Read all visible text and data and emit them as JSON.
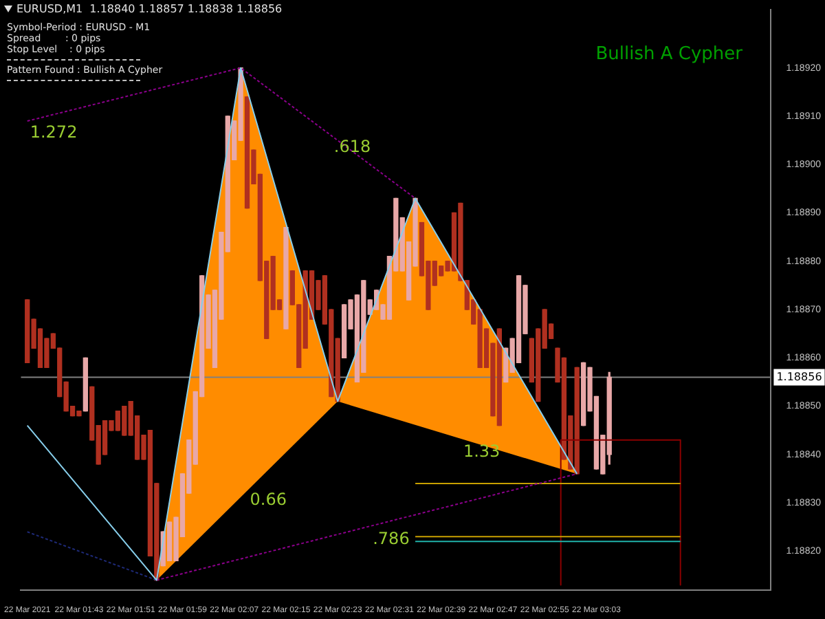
{
  "chart_data": {
    "type": "candlestick",
    "title": "EURUSD,M1  1.18840 1.18857 1.18838 1.18856",
    "subtitle": "Bullish A Cypher",
    "annotations": [
      "Symbol-Period : EURUSD - M1",
      "Spread        : 0 pips",
      "Stop Level    : 0 pips",
      "Pattern Found : Bullish A Cypher",
      {
        "text": "1.272",
        "x": "2021-03-22T01:35",
        "y": 1.18909
      },
      {
        "text": ".618",
        "x": "2021-03-22T02:22",
        "y": 1.18906
      },
      {
        "text": "0.66",
        "x": "2021-03-22T02:09",
        "y": 1.18833
      },
      {
        "text": "1.33",
        "x": "2021-03-22T02:42",
        "y": 1.18843
      },
      {
        "text": ".786",
        "x": "2021-03-22T02:28",
        "y": 1.18825
      }
    ],
    "xlim": [
      "2021-03-22T01:34",
      "2021-03-22T03:30"
    ],
    "xticks": [
      {
        "value": "2021-03-22T01:35",
        "label": "22 Mar 2021"
      },
      {
        "value": "2021-03-22T01:43",
        "label": "22 Mar 01:43"
      },
      {
        "value": "2021-03-22T01:51",
        "label": "22 Mar 01:51"
      },
      {
        "value": "2021-03-22T01:59",
        "label": "22 Mar 01:59"
      },
      {
        "value": "2021-03-22T02:07",
        "label": "22 Mar 02:07"
      },
      {
        "value": "2021-03-22T02:15",
        "label": "22 Mar 02:15"
      },
      {
        "value": "2021-03-22T02:23",
        "label": "22 Mar 02:23"
      },
      {
        "value": "2021-03-22T02:31",
        "label": "22 Mar 02:31"
      },
      {
        "value": "2021-03-22T02:39",
        "label": "22 Mar 02:39"
      },
      {
        "value": "2021-03-22T02:47",
        "label": "22 Mar 02:47"
      },
      {
        "value": "2021-03-22T02:55",
        "label": "22 Mar 02:55"
      },
      {
        "value": "2021-03-22T03:03",
        "label": "22 Mar 03:03"
      }
    ],
    "ylim": [
      1.18812,
      1.18932
    ],
    "yticks": [
      {
        "value": 1.1882,
        "label": "1.18820"
      },
      {
        "value": 1.1883,
        "label": "1.18830"
      },
      {
        "value": 1.1884,
        "label": "1.18840"
      },
      {
        "value": 1.1885,
        "label": "1.18850"
      },
      {
        "value": 1.1886,
        "label": "1.18860"
      },
      {
        "value": 1.1887,
        "label": "1.18870"
      },
      {
        "value": 1.1888,
        "label": "1.18880"
      },
      {
        "value": 1.1889,
        "label": "1.18890"
      },
      {
        "value": 1.189,
        "label": "1.18900"
      },
      {
        "value": 1.1891,
        "label": "1.18910"
      },
      {
        "value": 1.1892,
        "label": "1.18920"
      }
    ],
    "ref_lines": [
      {
        "axis": "y",
        "value": 1.18856,
        "label": "1.18856",
        "color": "#808080"
      }
    ],
    "series": [
      {
        "color": "#b03020",
        "x": [
          "2021-03-22T01:35",
          "2021-03-22T01:36",
          "2021-03-22T01:37",
          "2021-03-22T01:38",
          "2021-03-22T01:39",
          "2021-03-22T01:40",
          "2021-03-22T01:41",
          "2021-03-22T01:42",
          "2021-03-22T01:43",
          "2021-03-22T01:45",
          "2021-03-22T01:46",
          "2021-03-22T01:47",
          "2021-03-22T01:48",
          "2021-03-22T01:49",
          "2021-03-22T01:50",
          "2021-03-22T01:51",
          "2021-03-22T01:52",
          "2021-03-22T01:53",
          "2021-03-22T01:54",
          "2021-03-22T01:55",
          "2021-03-22T02:09",
          "2021-03-22T02:10",
          "2021-03-22T02:11",
          "2021-03-22T02:12",
          "2021-03-22T02:13",
          "2021-03-22T02:14",
          "2021-03-22T02:16",
          "2021-03-22T02:17",
          "2021-03-22T02:18",
          "2021-03-22T02:19",
          "2021-03-22T02:20",
          "2021-03-22T02:21",
          "2021-03-22T02:22",
          "2021-03-22T02:23",
          "2021-03-22T02:36",
          "2021-03-22T02:37",
          "2021-03-22T02:38",
          "2021-03-22T02:39",
          "2021-03-22T02:40",
          "2021-03-22T02:41",
          "2021-03-22T02:42",
          "2021-03-22T02:43",
          "2021-03-22T02:44",
          "2021-03-22T02:45",
          "2021-03-22T02:46",
          "2021-03-22T02:47",
          "2021-03-22T02:48",
          "2021-03-22T02:53",
          "2021-03-22T02:54",
          "2021-03-22T02:55",
          "2021-03-22T02:56",
          "2021-03-22T02:57",
          "2021-03-22T02:58",
          "2021-03-22T02:59",
          "2021-03-22T03:00"
        ],
        "ohlc": [
          [
            1.18872,
            1.18872,
            1.18859,
            1.18859
          ],
          [
            1.18868,
            1.18868,
            1.18862,
            1.18862
          ],
          [
            1.18866,
            1.18866,
            1.18858,
            1.18858
          ],
          [
            1.18864,
            1.18864,
            1.18858,
            1.18858
          ],
          [
            1.18865,
            1.18865,
            1.18862,
            1.18862
          ],
          [
            1.18862,
            1.18862,
            1.18852,
            1.18852
          ],
          [
            1.18855,
            1.18855,
            1.18849,
            1.18849
          ],
          [
            1.1885,
            1.1885,
            1.18848,
            1.18848
          ],
          [
            1.18849,
            1.18849,
            1.18848,
            1.18848
          ],
          [
            1.18854,
            1.18854,
            1.18843,
            1.18843
          ],
          [
            1.18846,
            1.18846,
            1.18838,
            1.18838
          ],
          [
            1.18847,
            1.18847,
            1.1884,
            1.1884
          ],
          [
            1.18847,
            1.18847,
            1.18845,
            1.18845
          ],
          [
            1.18849,
            1.18849,
            1.18845,
            1.18845
          ],
          [
            1.1885,
            1.1885,
            1.18844,
            1.18844
          ],
          [
            1.18851,
            1.18851,
            1.18844,
            1.18844
          ],
          [
            1.18848,
            1.18848,
            1.18839,
            1.18839
          ],
          [
            1.18844,
            1.18844,
            1.18839,
            1.18839
          ],
          [
            1.18845,
            1.18845,
            1.18819,
            1.18819
          ],
          [
            1.18834,
            1.18834,
            1.18814,
            1.18814
          ],
          [
            1.18914,
            1.18914,
            1.18891,
            1.18891
          ],
          [
            1.18903,
            1.18903,
            1.18896,
            1.18896
          ],
          [
            1.18898,
            1.18898,
            1.18876,
            1.18876
          ],
          [
            1.1888,
            1.1888,
            1.18864,
            1.18864
          ],
          [
            1.18881,
            1.18881,
            1.1887,
            1.1887
          ],
          [
            1.18872,
            1.18872,
            1.1887,
            1.1887
          ],
          [
            1.18878,
            1.18878,
            1.18871,
            1.18871
          ],
          [
            1.18871,
            1.18871,
            1.18858,
            1.18858
          ],
          [
            1.18878,
            1.18878,
            1.18862,
            1.18862
          ],
          [
            1.18878,
            1.18878,
            1.18868,
            1.18868
          ],
          [
            1.18876,
            1.18876,
            1.1887,
            1.1887
          ],
          [
            1.18877,
            1.18877,
            1.18867,
            1.18867
          ],
          [
            1.1887,
            1.1887,
            1.18852,
            1.18852
          ],
          [
            1.18864,
            1.18864,
            1.18851,
            1.18851
          ],
          [
            1.18888,
            1.18888,
            1.18877,
            1.18877
          ],
          [
            1.1888,
            1.1888,
            1.1887,
            1.1887
          ],
          [
            1.1888,
            1.1888,
            1.18875,
            1.18875
          ],
          [
            1.18879,
            1.18879,
            1.18877,
            1.18877
          ],
          [
            1.1888,
            1.1888,
            1.18878,
            1.18878
          ],
          [
            1.1889,
            1.1889,
            1.18878,
            1.18878
          ],
          [
            1.18892,
            1.18892,
            1.18876,
            1.18876
          ],
          [
            1.18876,
            1.18876,
            1.1887,
            1.1887
          ],
          [
            1.18872,
            1.18872,
            1.18867,
            1.18867
          ],
          [
            1.1887,
            1.1887,
            1.18858,
            1.18858
          ],
          [
            1.18866,
            1.18866,
            1.18858,
            1.18858
          ],
          [
            1.18863,
            1.18863,
            1.18848,
            1.18848
          ],
          [
            1.18866,
            1.18866,
            1.18846,
            1.18846
          ],
          [
            1.18864,
            1.18864,
            1.18855,
            1.18855
          ],
          [
            1.18866,
            1.18866,
            1.18851,
            1.18851
          ],
          [
            1.1887,
            1.1887,
            1.18862,
            1.18862
          ],
          [
            1.18867,
            1.18867,
            1.18864,
            1.18864
          ],
          [
            1.18862,
            1.18862,
            1.18855,
            1.18855
          ],
          [
            1.1886,
            1.1886,
            1.18839,
            1.18839
          ],
          [
            1.18848,
            1.18848,
            1.18837,
            1.18837
          ],
          [
            1.18858,
            1.18858,
            1.18836,
            1.18836
          ]
        ]
      },
      {
        "color": "#e8a8a8",
        "x": [
          "2021-03-22T01:44",
          "2021-03-22T01:56",
          "2021-03-22T01:57",
          "2021-03-22T01:58",
          "2021-03-22T01:59",
          "2021-03-22T02:00",
          "2021-03-22T02:01",
          "2021-03-22T02:02",
          "2021-03-22T02:03",
          "2021-03-22T02:04",
          "2021-03-22T02:05",
          "2021-03-22T02:06",
          "2021-03-22T02:07",
          "2021-03-22T02:08",
          "2021-03-22T02:15",
          "2021-03-22T02:24",
          "2021-03-22T02:25",
          "2021-03-22T02:26",
          "2021-03-22T02:27",
          "2021-03-22T02:28",
          "2021-03-22T02:29",
          "2021-03-22T02:30",
          "2021-03-22T02:31",
          "2021-03-22T02:32",
          "2021-03-22T02:33",
          "2021-03-22T02:34",
          "2021-03-22T02:35",
          "2021-03-22T02:49",
          "2021-03-22T02:50",
          "2021-03-22T02:51",
          "2021-03-22T02:52",
          "2021-03-22T03:01",
          "2021-03-22T03:02",
          "2021-03-22T03:03",
          "2021-03-22T03:04",
          "2021-03-22T03:05"
        ],
        "ohlc": [
          [
            1.18849,
            1.1886,
            1.18849,
            1.1886
          ],
          [
            1.18817,
            1.18824,
            1.18817,
            1.18824
          ],
          [
            1.18818,
            1.18826,
            1.18818,
            1.18826
          ],
          [
            1.18818,
            1.18827,
            1.18818,
            1.18827
          ],
          [
            1.18823,
            1.18836,
            1.18823,
            1.18836
          ],
          [
            1.18832,
            1.18843,
            1.18832,
            1.18843
          ],
          [
            1.18838,
            1.18853,
            1.18838,
            1.18853
          ],
          [
            1.18852,
            1.18877,
            1.18852,
            1.18877
          ],
          [
            1.18862,
            1.18873,
            1.18862,
            1.18873
          ],
          [
            1.18858,
            1.18874,
            1.18858,
            1.18874
          ],
          [
            1.18868,
            1.18886,
            1.18868,
            1.18886
          ],
          [
            1.18882,
            1.1891,
            1.18882,
            1.1891
          ],
          [
            1.18901,
            1.18909,
            1.18901,
            1.18909
          ],
          [
            1.18905,
            1.1892,
            1.18905,
            1.1892
          ],
          [
            1.18866,
            1.18887,
            1.18866,
            1.18887
          ],
          [
            1.1886,
            1.18871,
            1.1886,
            1.18871
          ],
          [
            1.18866,
            1.18872,
            1.18866,
            1.18872
          ],
          [
            1.18855,
            1.18873,
            1.18855,
            1.18873
          ],
          [
            1.18857,
            1.18876,
            1.18857,
            1.18876
          ],
          [
            1.18869,
            1.18872,
            1.18869,
            1.18872
          ],
          [
            1.1887,
            1.18874,
            1.1887,
            1.18874
          ],
          [
            1.18868,
            1.18871,
            1.18868,
            1.18871
          ],
          [
            1.18868,
            1.18881,
            1.18868,
            1.18881
          ],
          [
            1.18878,
            1.18893,
            1.18878,
            1.18893
          ],
          [
            1.18878,
            1.18889,
            1.18878,
            1.18889
          ],
          [
            1.18872,
            1.18884,
            1.18872,
            1.18884
          ],
          [
            1.18879,
            1.18893,
            1.18879,
            1.18893
          ],
          [
            1.18855,
            1.18862,
            1.18855,
            1.18862
          ],
          [
            1.18857,
            1.18864,
            1.18857,
            1.18864
          ],
          [
            1.18859,
            1.18877,
            1.18859,
            1.18877
          ],
          [
            1.18865,
            1.18875,
            1.18865,
            1.18875
          ],
          [
            1.18846,
            1.18859,
            1.18846,
            1.18859
          ],
          [
            1.18849,
            1.18858,
            1.18849,
            1.18858
          ],
          [
            1.18837,
            1.18852,
            1.18837,
            1.18852
          ],
          [
            1.18836,
            1.18844,
            1.18836,
            1.18844
          ],
          [
            1.1884,
            1.18857,
            1.18838,
            1.18856
          ]
        ]
      },
      {
        "type": "area",
        "color": "#ff8c00",
        "x": [
          "2021-03-22T01:55",
          "2021-03-22T02:08",
          "2021-03-22T02:23",
          "2021-03-22T02:35",
          "2021-03-22T03:00"
        ],
        "values": [
          1.18814,
          1.1892,
          1.18851,
          1.18893,
          1.18836
        ]
      },
      {
        "type": "line",
        "color": "#87ceeb",
        "x": [
          "2021-03-22T01:35",
          "2021-03-22T01:55",
          "2021-03-22T02:08",
          "2021-03-22T02:23",
          "2021-03-22T02:35",
          "2021-03-22T03:00"
        ],
        "values": [
          1.18846,
          1.18814,
          1.1892,
          1.18851,
          1.18893,
          1.18836
        ]
      },
      {
        "type": "line",
        "color": "#8b008b",
        "line_style": "dotted",
        "x": [
          "2021-03-22T01:35",
          "2021-03-22T02:08",
          "2021-03-22T02:35"
        ],
        "values": [
          1.18909,
          1.1892,
          1.18893
        ]
      },
      {
        "type": "line",
        "color": "#8b008b",
        "line_style": "dotted",
        "x": [
          "2021-03-22T01:55",
          "2021-03-22T03:00"
        ],
        "values": [
          1.18814,
          1.18836
        ]
      },
      {
        "type": "line",
        "color": "#1e2a78",
        "line_style": "dotted",
        "x": [
          "2021-03-22T01:35",
          "2021-03-22T01:55"
        ],
        "values": [
          1.18824,
          1.18814
        ]
      },
      {
        "type": "line",
        "color": "#c8a000",
        "x": [
          "2021-03-22T02:35",
          "2021-03-22T03:16"
        ],
        "values": [
          1.18834,
          1.18834
        ]
      },
      {
        "type": "line",
        "color": "#c8a000",
        "x": [
          "2021-03-22T02:35",
          "2021-03-22T03:16"
        ],
        "values": [
          1.18823,
          1.18823
        ]
      },
      {
        "type": "line",
        "color": "#20b2aa",
        "x": [
          "2021-03-22T02:35",
          "2021-03-22T03:16"
        ],
        "values": [
          1.18822,
          1.18822
        ]
      },
      {
        "type": "line",
        "color": "#8b0000",
        "x": [
          "2021-03-22T02:57:30",
          "2021-03-22T03:16"
        ],
        "values": [
          1.18843,
          1.18843
        ]
      },
      {
        "type": "line",
        "color": "#8b0000",
        "x": [
          "2021-03-22T02:57:30",
          "2021-03-22T02:57:30"
        ],
        "values": [
          1.18843,
          1.18813
        ]
      },
      {
        "type": "line",
        "color": "#8b0000",
        "x": [
          "2021-03-22T03:16",
          "2021-03-22T03:16"
        ],
        "values": [
          1.18843,
          1.18813
        ]
      }
    ]
  }
}
